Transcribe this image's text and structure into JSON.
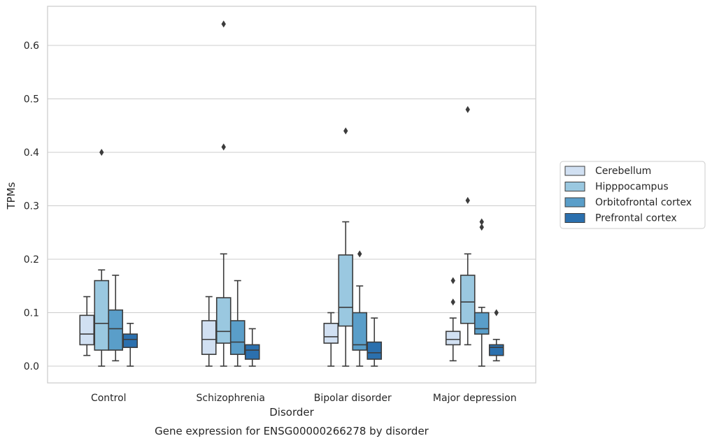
{
  "chart_data": {
    "type": "box",
    "title": "Gene expression for ENSG00000266278 by disorder",
    "xlabel": "Disorder",
    "ylabel": "TPMs",
    "ylim": [
      -0.032,
      0.675
    ],
    "yticks": [
      0.0,
      0.1,
      0.2,
      0.3,
      0.4,
      0.5,
      0.6
    ],
    "ytick_labels": [
      "0.0",
      "0.1",
      "0.2",
      "0.3",
      "0.4",
      "0.5",
      "0.6"
    ],
    "grid": true,
    "legend_position": "right",
    "categories": [
      "Control",
      "Schizophrenia",
      "Bipolar disorder",
      "Major depression"
    ],
    "series": [
      {
        "name": "Cerebellum",
        "color": "#d1e0f2",
        "boxes": [
          {
            "whisker_low": 0.02,
            "q1": 0.04,
            "median": 0.06,
            "q3": 0.095,
            "whisker_high": 0.13,
            "outliers": []
          },
          {
            "whisker_low": 0.0,
            "q1": 0.022,
            "median": 0.05,
            "q3": 0.085,
            "whisker_high": 0.13,
            "outliers": []
          },
          {
            "whisker_low": 0.0,
            "q1": 0.043,
            "median": 0.055,
            "q3": 0.08,
            "whisker_high": 0.1,
            "outliers": []
          },
          {
            "whisker_low": 0.01,
            "q1": 0.04,
            "median": 0.05,
            "q3": 0.065,
            "whisker_high": 0.09,
            "outliers": [
              0.12,
              0.16
            ]
          }
        ]
      },
      {
        "name": "Hipppocampus",
        "color": "#9ac8e0",
        "boxes": [
          {
            "whisker_low": 0.0,
            "q1": 0.03,
            "median": 0.08,
            "q3": 0.16,
            "whisker_high": 0.18,
            "outliers": [
              0.4
            ]
          },
          {
            "whisker_low": 0.0,
            "q1": 0.043,
            "median": 0.065,
            "q3": 0.128,
            "whisker_high": 0.21,
            "outliers": [
              0.41,
              0.64
            ]
          },
          {
            "whisker_low": 0.0,
            "q1": 0.075,
            "median": 0.11,
            "q3": 0.208,
            "whisker_high": 0.27,
            "outliers": [
              0.44
            ]
          },
          {
            "whisker_low": 0.04,
            "q1": 0.08,
            "median": 0.12,
            "q3": 0.17,
            "whisker_high": 0.21,
            "outliers": [
              0.31,
              0.48
            ]
          }
        ]
      },
      {
        "name": "Orbitofrontal cortex",
        "color": "#5a9ec9",
        "boxes": [
          {
            "whisker_low": 0.01,
            "q1": 0.03,
            "median": 0.07,
            "q3": 0.105,
            "whisker_high": 0.17,
            "outliers": []
          },
          {
            "whisker_low": 0.0,
            "q1": 0.022,
            "median": 0.045,
            "q3": 0.085,
            "whisker_high": 0.16,
            "outliers": []
          },
          {
            "whisker_low": 0.0,
            "q1": 0.03,
            "median": 0.04,
            "q3": 0.1,
            "whisker_high": 0.15,
            "outliers": [
              0.21
            ]
          },
          {
            "whisker_low": 0.0,
            "q1": 0.06,
            "median": 0.07,
            "q3": 0.1,
            "whisker_high": 0.11,
            "outliers": [
              0.26,
              0.27
            ]
          }
        ]
      },
      {
        "name": "Prefrontal cortex",
        "color": "#2b70ae",
        "boxes": [
          {
            "whisker_low": 0.0,
            "q1": 0.035,
            "median": 0.05,
            "q3": 0.06,
            "whisker_high": 0.08,
            "outliers": []
          },
          {
            "whisker_low": 0.0,
            "q1": 0.013,
            "median": 0.03,
            "q3": 0.04,
            "whisker_high": 0.07,
            "outliers": []
          },
          {
            "whisker_low": 0.0,
            "q1": 0.013,
            "median": 0.025,
            "q3": 0.045,
            "whisker_high": 0.09,
            "outliers": []
          },
          {
            "whisker_low": 0.01,
            "q1": 0.02,
            "median": 0.035,
            "q3": 0.04,
            "whisker_high": 0.05,
            "outliers": [
              0.1
            ]
          }
        ]
      }
    ]
  }
}
